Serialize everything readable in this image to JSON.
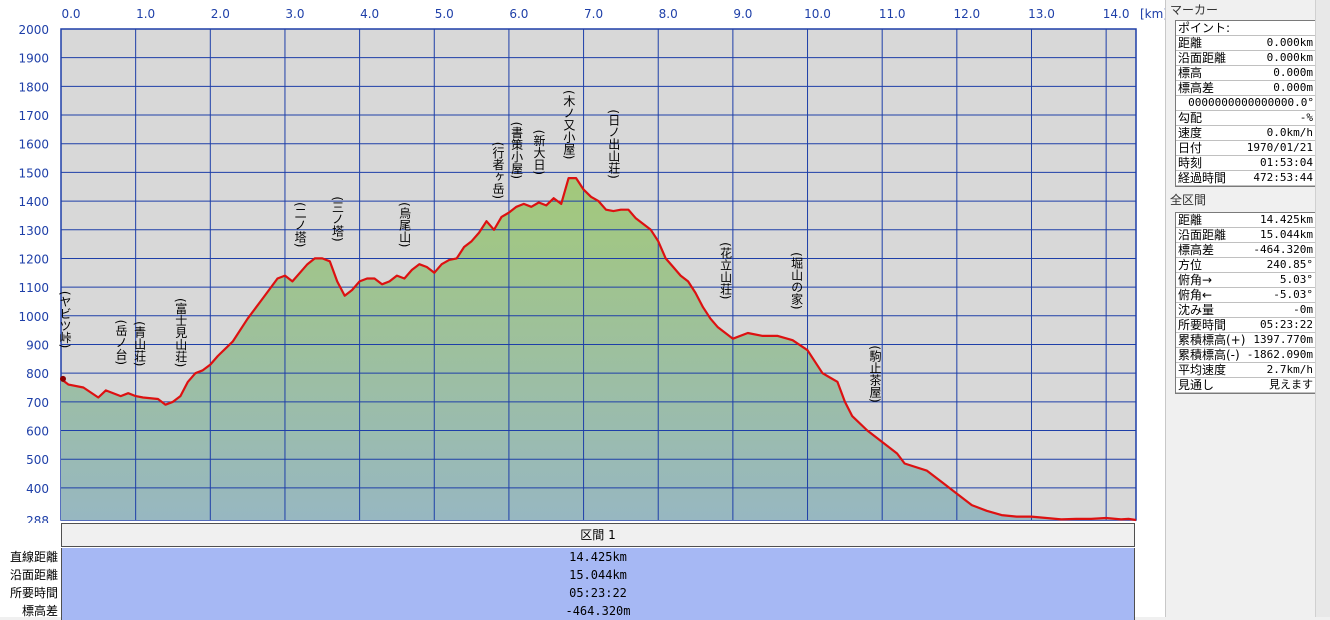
{
  "chart_data": {
    "type": "area",
    "x_unit": "[km]",
    "xlim": [
      0,
      14.4
    ],
    "ylim": [
      288,
      2000
    ],
    "x_ticks": [
      "0.0",
      "1.0",
      "2.0",
      "3.0",
      "4.0",
      "5.0",
      "6.0",
      "7.0",
      "8.0",
      "9.0",
      "10.0",
      "11.0",
      "12.0",
      "13.0",
      "14.0"
    ],
    "y_ticks": [
      "2000",
      "1900",
      "1800",
      "1700",
      "1600",
      "1500",
      "1400",
      "1300",
      "1200",
      "1100",
      "1000",
      "900",
      "800",
      "700",
      "600",
      "500",
      "400",
      "288"
    ],
    "colors": {
      "line": "#dd1111",
      "fill_top": "#a3c97a",
      "fill_bottom": "#97b7c1",
      "plot_bg": "#d8d8d8",
      "grid": "#1e3fa8"
    },
    "profile": {
      "x": [
        0.0,
        0.1,
        0.3,
        0.5,
        0.6,
        0.8,
        0.9,
        1.0,
        1.1,
        1.3,
        1.4,
        1.5,
        1.6,
        1.7,
        1.8,
        1.9,
        2.0,
        2.1,
        2.3,
        2.5,
        2.7,
        2.9,
        3.0,
        3.1,
        3.2,
        3.3,
        3.4,
        3.5,
        3.6,
        3.7,
        3.8,
        3.9,
        4.0,
        4.1,
        4.2,
        4.3,
        4.4,
        4.5,
        4.6,
        4.7,
        4.8,
        4.9,
        5.0,
        5.1,
        5.2,
        5.3,
        5.4,
        5.5,
        5.6,
        5.7,
        5.8,
        5.9,
        6.0,
        6.1,
        6.2,
        6.3,
        6.4,
        6.5,
        6.6,
        6.7,
        6.8,
        6.9,
        7.0,
        7.1,
        7.2,
        7.3,
        7.4,
        7.5,
        7.6,
        7.7,
        7.8,
        7.9,
        8.0,
        8.1,
        8.2,
        8.3,
        8.4,
        8.5,
        8.6,
        8.7,
        8.8,
        8.9,
        9.0,
        9.2,
        9.4,
        9.6,
        9.8,
        10.0,
        10.1,
        10.2,
        10.3,
        10.4,
        10.5,
        10.6,
        10.8,
        11.0,
        11.2,
        11.3,
        11.6,
        11.8,
        12.0,
        12.2,
        12.4,
        12.6,
        12.8,
        13.0,
        13.2,
        13.4,
        13.6,
        13.8,
        14.0,
        14.2,
        14.3,
        14.4
      ],
      "y": [
        780,
        760,
        750,
        715,
        740,
        720,
        730,
        720,
        715,
        710,
        690,
        700,
        720,
        770,
        800,
        810,
        830,
        860,
        910,
        990,
        1060,
        1130,
        1140,
        1120,
        1150,
        1180,
        1200,
        1200,
        1190,
        1120,
        1070,
        1090,
        1120,
        1130,
        1130,
        1110,
        1120,
        1140,
        1130,
        1160,
        1180,
        1170,
        1150,
        1180,
        1195,
        1200,
        1240,
        1260,
        1290,
        1330,
        1300,
        1345,
        1360,
        1380,
        1390,
        1380,
        1395,
        1385,
        1410,
        1390,
        1480,
        1480,
        1440,
        1415,
        1400,
        1370,
        1365,
        1370,
        1370,
        1340,
        1320,
        1300,
        1260,
        1200,
        1170,
        1140,
        1120,
        1080,
        1030,
        990,
        960,
        940,
        920,
        940,
        930,
        930,
        915,
        880,
        840,
        800,
        785,
        770,
        700,
        650,
        600,
        560,
        520,
        485,
        460,
        420,
        380,
        340,
        320,
        305,
        300,
        300,
        295,
        290,
        292,
        292,
        295,
        290,
        292,
        288
      ]
    },
    "peak_labels": [
      {
        "name": "ヤビツ峠",
        "x": 0.0
      },
      {
        "name": "岳ノ台",
        "x": 0.75
      },
      {
        "name": "青山荘",
        "x": 1.0
      },
      {
        "name": "富士見山荘",
        "x": 1.55
      },
      {
        "name": "二ノ塔",
        "x": 3.15
      },
      {
        "name": "三ノ塔",
        "x": 3.65
      },
      {
        "name": "烏尾山",
        "x": 4.55
      },
      {
        "name": "行者ヶ岳",
        "x": 5.8
      },
      {
        "name": "書策小屋",
        "x": 6.05
      },
      {
        "name": "新大日",
        "x": 6.35
      },
      {
        "name": "木ノ又小屋",
        "x": 6.75
      },
      {
        "name": "日ノ出山荘",
        "x": 7.35
      },
      {
        "name": "花立山荘",
        "x": 8.85
      },
      {
        "name": "堀山の家",
        "x": 9.8
      },
      {
        "name": "駒止茶屋",
        "x": 10.85
      }
    ]
  },
  "summary": {
    "header": "区間 1",
    "rows": [
      {
        "label": "直線距離",
        "value": "14.425km"
      },
      {
        "label": "沿面距離",
        "value": "15.044km"
      },
      {
        "label": "所要時間",
        "value": "05:23:22"
      },
      {
        "label": "標高差",
        "value": "-464.320m"
      }
    ]
  },
  "side": {
    "marker_title": "マーカー",
    "point_title": "ポイント:",
    "marker_rows": [
      {
        "k": "距離",
        "v": "0.000km"
      },
      {
        "k": "沿面距離",
        "v": "0.000km"
      },
      {
        "k": "標高",
        "v": "0.000m"
      },
      {
        "k": "標高差",
        "v": "0.000m"
      },
      {
        "k": "",
        "v": "0000000000000000.0°"
      },
      {
        "k": "勾配",
        "v": "-%"
      },
      {
        "k": "速度",
        "v": "0.0km/h"
      },
      {
        "k": "日付",
        "v": "1970/01/21"
      },
      {
        "k": "時刻",
        "v": "01:53:04"
      },
      {
        "k": "経過時間",
        "v": "472:53:44"
      }
    ],
    "total_title": "全区間",
    "total_rows": [
      {
        "k": "距離",
        "v": "14.425km"
      },
      {
        "k": "沿面距離",
        "v": "15.044km"
      },
      {
        "k": "標高差",
        "v": "-464.320m"
      },
      {
        "k": "方位",
        "v": "240.85°"
      },
      {
        "k": "俯角→",
        "v": "5.03°"
      },
      {
        "k": "俯角←",
        "v": "-5.03°"
      },
      {
        "k": "沈み量",
        "v": "-0m"
      },
      {
        "k": "所要時間",
        "v": "05:23:22"
      },
      {
        "k": "累積標高(+)",
        "v": "1397.770m"
      },
      {
        "k": "累積標高(-)",
        "v": "-1862.090m"
      },
      {
        "k": "平均速度",
        "v": "2.7km/h"
      },
      {
        "k": "見通し",
        "v": "見えます"
      }
    ]
  }
}
